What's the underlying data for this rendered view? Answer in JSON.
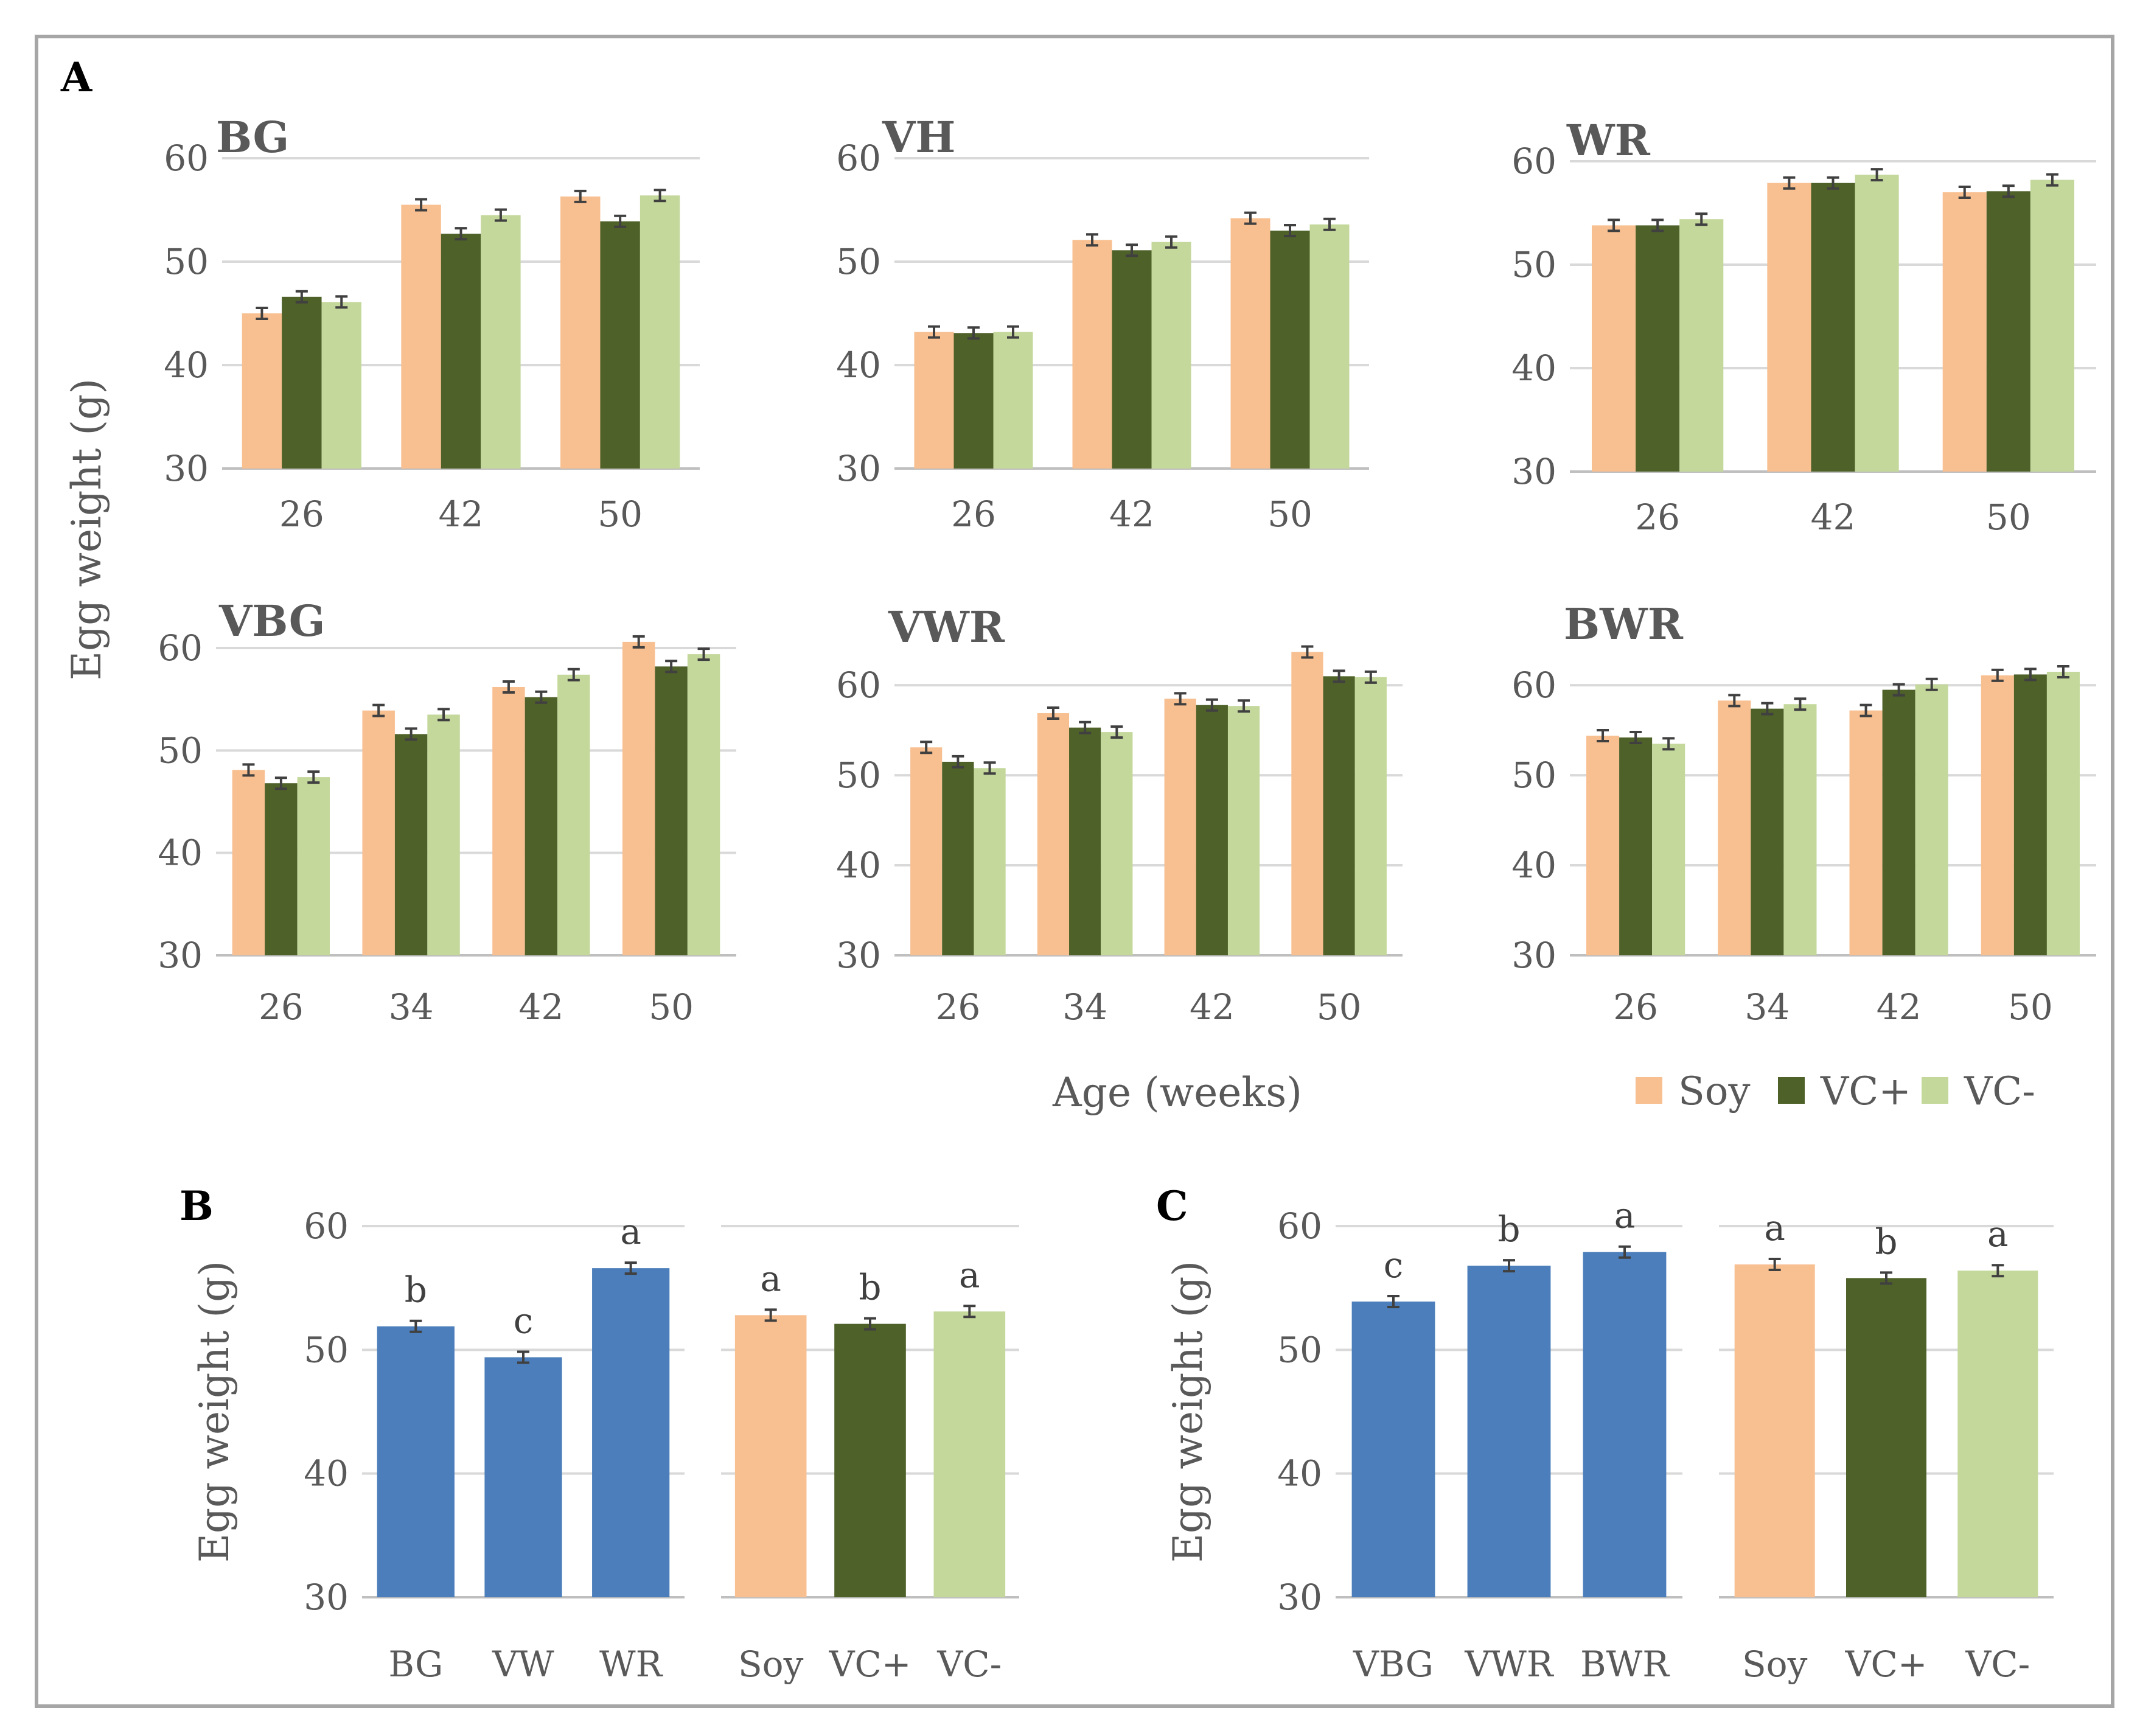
{
  "colors": {
    "soy": "#F8BF90",
    "vc_plus": "#4E6128",
    "vc_minus": "#C4D89C",
    "line": "#4B7EBA",
    "grid": "#D9D9D9",
    "axis_text": "#595959",
    "border": "#A6A6A6",
    "error_bar": "#404040"
  },
  "panel_labels": {
    "a": "A",
    "b": "B",
    "c": "C"
  },
  "axis": {
    "y_label": "Egg weight (g)",
    "x_label": "Age (weeks)"
  },
  "legend": [
    {
      "name": "Soy",
      "color": "#F8BF90"
    },
    {
      "name": "VC+",
      "color": "#4E6128"
    },
    {
      "name": "VC-",
      "color": "#C4D89C"
    }
  ],
  "chart_data": [
    {
      "id": "BG",
      "type": "bar",
      "title": "BG",
      "categories": [
        "26",
        "42",
        "50"
      ],
      "series": [
        {
          "name": "Soy",
          "values": [
            45.0,
            55.5,
            56.3
          ]
        },
        {
          "name": "VC+",
          "values": [
            46.6,
            52.7,
            53.9
          ]
        },
        {
          "name": "VC-",
          "values": [
            46.1,
            54.5,
            56.4
          ]
        }
      ],
      "yticks": [
        "30",
        "40",
        "50",
        "60"
      ],
      "ylim": [
        30,
        60
      ]
    },
    {
      "id": "VH",
      "type": "bar",
      "title": "VH",
      "categories": [
        "26",
        "42",
        "50"
      ],
      "series": [
        {
          "name": "Soy",
          "values": [
            43.2,
            52.1,
            54.2
          ]
        },
        {
          "name": "VC+",
          "values": [
            43.1,
            51.1,
            53.0
          ]
        },
        {
          "name": "VC-",
          "values": [
            43.2,
            51.9,
            53.6
          ]
        }
      ],
      "yticks": [
        "30",
        "40",
        "50",
        "60"
      ],
      "ylim": [
        30,
        60
      ]
    },
    {
      "id": "WR",
      "type": "bar",
      "title": "WR",
      "categories": [
        "26",
        "42",
        "50"
      ],
      "series": [
        {
          "name": "Soy",
          "values": [
            53.8,
            57.9,
            57.0
          ]
        },
        {
          "name": "VC+",
          "values": [
            53.8,
            57.9,
            57.1
          ]
        },
        {
          "name": "VC-",
          "values": [
            54.4,
            58.7,
            58.2
          ]
        }
      ],
      "yticks": [
        "30",
        "40",
        "50",
        "60"
      ],
      "ylim": [
        30,
        60
      ]
    },
    {
      "id": "VBG",
      "type": "bar",
      "title": "VBG",
      "categories": [
        "26",
        "34",
        "42",
        "50"
      ],
      "series": [
        {
          "name": "Soy",
          "values": [
            48.1,
            53.9,
            56.2,
            60.6
          ]
        },
        {
          "name": "VC+",
          "values": [
            46.8,
            51.6,
            55.2,
            58.2
          ]
        },
        {
          "name": "VC-",
          "values": [
            47.4,
            53.5,
            57.4,
            59.4
          ]
        }
      ],
      "yticks": [
        "30",
        "40",
        "50",
        "60"
      ],
      "ylim": [
        30,
        60
      ]
    },
    {
      "id": "VWR",
      "type": "bar",
      "title": "VWR",
      "categories": [
        "26",
        "34",
        "42",
        "50"
      ],
      "series": [
        {
          "name": "Soy",
          "values": [
            53.1,
            56.9,
            58.5,
            63.7
          ]
        },
        {
          "name": "VC+",
          "values": [
            51.5,
            55.3,
            57.8,
            61.0
          ]
        },
        {
          "name": "VC-",
          "values": [
            50.8,
            54.8,
            57.7,
            60.9
          ]
        }
      ],
      "yticks": [
        "30",
        "40",
        "50",
        "60"
      ],
      "ylim": [
        30,
        64
      ]
    },
    {
      "id": "BWR",
      "type": "bar",
      "title": "BWR",
      "categories": [
        "26",
        "34",
        "42",
        "50"
      ],
      "series": [
        {
          "name": "Soy",
          "values": [
            54.4,
            58.3,
            57.2,
            61.1
          ]
        },
        {
          "name": "VC+",
          "values": [
            54.2,
            57.4,
            59.5,
            61.2
          ]
        },
        {
          "name": "VC-",
          "values": [
            53.5,
            57.9,
            60.1,
            61.5
          ]
        }
      ],
      "yticks": [
        "30",
        "40",
        "50",
        "60"
      ],
      "ylim": [
        30,
        64
      ]
    },
    {
      "id": "B",
      "type": "bar",
      "title": "",
      "groups": [
        {
          "categories": [
            "BG",
            "VW",
            "WR"
          ],
          "values": [
            51.9,
            49.4,
            56.6
          ],
          "letters": [
            "b",
            "c",
            "a"
          ],
          "colors": [
            "#4B7EBA",
            "#4B7EBA",
            "#4B7EBA"
          ]
        },
        {
          "categories": [
            "Soy",
            "VC+",
            "VC-"
          ],
          "values": [
            52.8,
            52.1,
            53.1
          ],
          "letters": [
            "a",
            "b",
            "a"
          ],
          "colors": [
            "#F8BF90",
            "#4E6128",
            "#C4D89C"
          ]
        }
      ],
      "ylabel": "Egg weight (g)",
      "yticks": [
        "30",
        "40",
        "50",
        "60"
      ],
      "ylim": [
        30,
        60
      ]
    },
    {
      "id": "C",
      "type": "bar",
      "title": "",
      "groups": [
        {
          "categories": [
            "VBG",
            "VWR",
            "BWR"
          ],
          "values": [
            53.9,
            56.8,
            57.9
          ],
          "letters": [
            "c",
            "b",
            "a"
          ],
          "colors": [
            "#4B7EBA",
            "#4B7EBA",
            "#4B7EBA"
          ]
        },
        {
          "categories": [
            "Soy",
            "VC+",
            "VC-"
          ],
          "values": [
            56.9,
            55.8,
            56.4
          ],
          "letters": [
            "a",
            "b",
            "a"
          ],
          "colors": [
            "#F8BF90",
            "#4E6128",
            "#C4D89C"
          ]
        }
      ],
      "ylabel": "Egg weight (g)",
      "yticks": [
        "30",
        "40",
        "50",
        "60"
      ],
      "ylim": [
        30,
        60
      ]
    }
  ]
}
